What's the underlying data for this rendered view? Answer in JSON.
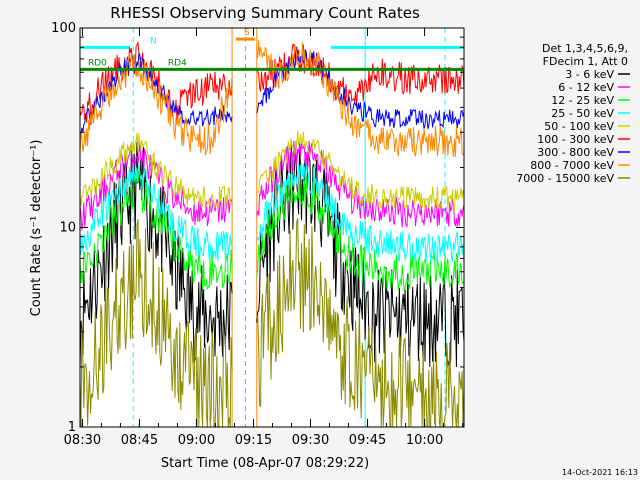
{
  "chart_data": {
    "type": "line",
    "title": "RHESSI Observing Summary Count Rates",
    "xlabel": "Start Time (08-Apr-07 08:29:22)",
    "ylabel": "Count Rate (s⁻¹ detector⁻¹)",
    "y_scale": "log",
    "ylim": [
      1,
      100
    ],
    "xlim_minutes": [
      0,
      101
    ],
    "x_tick_labels": [
      "08:30",
      "08:45",
      "09:00",
      "09:15",
      "09:30",
      "09:45",
      "10:00"
    ],
    "x_tick_minutes": [
      0.63,
      15.63,
      30.63,
      45.63,
      60.63,
      75.63,
      90.63
    ],
    "y_tick_labels": [
      "1",
      "10",
      "100"
    ],
    "y_tick_values": [
      1,
      10,
      100
    ],
    "legend_placement": "right",
    "legend_header": [
      "Det 1,3,4,5,6,9,",
      "FDecim 1, Att 0"
    ],
    "timestamp": "14-Oct-2021 16:13",
    "data_gap_minutes": [
      40,
      46.5
    ],
    "series": [
      {
        "name": "3 - 6 keV",
        "color": "#000000",
        "x": [
          0,
          5,
          10,
          15,
          20,
          25,
          30,
          35,
          40,
          46.5,
          52,
          57,
          62,
          67,
          72,
          77,
          82,
          88,
          95,
          101
        ],
        "values": [
          3.5,
          6,
          11,
          16,
          11,
          6,
          3.8,
          3.5,
          3.6,
          4.5,
          12,
          17,
          15,
          8,
          5,
          3.7,
          3.6,
          3.5,
          3.5,
          3.5
        ]
      },
      {
        "name": "6 - 12 keV",
        "color": "#ff00ff",
        "x": [
          0,
          5,
          10,
          15,
          20,
          25,
          30,
          35,
          40,
          46.5,
          52,
          57,
          62,
          67,
          72,
          77,
          82,
          88,
          95,
          101
        ],
        "values": [
          11,
          14,
          19,
          24,
          18,
          14,
          12,
          12,
          12.5,
          13,
          19,
          24,
          22,
          17,
          13.5,
          12.5,
          12,
          12,
          12,
          12
        ]
      },
      {
        "name": "12 - 25 keV",
        "color": "#00ff00",
        "x": [
          0,
          5,
          10,
          15,
          20,
          25,
          30,
          35,
          40,
          46.5,
          52,
          57,
          62,
          67,
          72,
          77,
          82,
          88,
          95,
          101
        ],
        "values": [
          6,
          8,
          12,
          16,
          11,
          8,
          6.3,
          6,
          6.2,
          7,
          12,
          16,
          14,
          9,
          7,
          6.2,
          6,
          6,
          6,
          6
        ]
      },
      {
        "name": "25 - 50 keV",
        "color": "#00ffff",
        "x": [
          0,
          5,
          10,
          15,
          20,
          25,
          30,
          35,
          40,
          46.5,
          52,
          57,
          62,
          67,
          72,
          77,
          82,
          88,
          95,
          101
        ],
        "values": [
          8,
          11,
          15,
          19,
          14,
          10,
          8.5,
          8,
          8.2,
          9,
          14,
          19,
          17,
          12,
          9.5,
          8.5,
          8.2,
          8,
          8,
          8
        ]
      },
      {
        "name": "50 - 100 keV",
        "color": "#cccc00",
        "x": [
          0,
          5,
          10,
          15,
          20,
          25,
          30,
          35,
          40,
          46.5,
          52,
          57,
          62,
          67,
          72,
          77,
          82,
          88,
          95,
          101
        ],
        "values": [
          14,
          17,
          22,
          27,
          20,
          16,
          14,
          14,
          14.5,
          15,
          21,
          27,
          25,
          19,
          15.5,
          14.5,
          14,
          14,
          14,
          14
        ]
      },
      {
        "name": "100 - 300 keV",
        "color": "#ff0000",
        "x": [
          0,
          5,
          10,
          15,
          20,
          25,
          30,
          35,
          40,
          46.5,
          52,
          57,
          62,
          67,
          72,
          77,
          82,
          88,
          95,
          101
        ],
        "values": [
          35,
          48,
          62,
          72,
          55,
          40,
          48,
          50,
          52,
          55,
          60,
          72,
          68,
          52,
          42,
          60,
          57,
          55,
          55,
          55
        ]
      },
      {
        "name": "300 - 800 keV",
        "color": "#0000ff",
        "x": [
          0,
          5,
          10,
          15,
          20,
          25,
          30,
          35,
          40,
          46.5,
          52,
          57,
          62,
          67,
          72,
          77,
          82,
          88,
          95,
          101
        ],
        "values": [
          30,
          42,
          58,
          70,
          52,
          38,
          35,
          36,
          38,
          40,
          55,
          72,
          68,
          50,
          40,
          36,
          35,
          35,
          35,
          35
        ]
      },
      {
        "name": "800 - 7000 keV",
        "color": "#ff8800",
        "x": [
          0,
          5,
          10,
          15,
          20,
          25,
          30,
          35,
          40,
          46.5,
          52,
          57,
          62,
          67,
          72,
          77,
          82,
          88,
          95,
          101
        ],
        "values": [
          25,
          38,
          55,
          68,
          48,
          33,
          27,
          28,
          50,
          80,
          55,
          75,
          68,
          45,
          33,
          28,
          27,
          27,
          27,
          27
        ]
      },
      {
        "name": "7000 - 15000 keV",
        "color": "#8b8b00",
        "x": [
          0,
          5,
          10,
          15,
          20,
          25,
          30,
          35,
          40,
          46.5,
          52,
          57,
          62,
          67,
          72,
          77,
          82,
          88,
          95,
          101
        ],
        "values": [
          1.5,
          2.5,
          4,
          6,
          4,
          2.5,
          1.7,
          1.5,
          1.6,
          2,
          4,
          6,
          5,
          3,
          2,
          1.6,
          1.5,
          1.5,
          1.5,
          1.5
        ]
      }
    ],
    "flag_bars": [
      {
        "label": "N",
        "color": "#00ffff",
        "level": 80,
        "ranges": [
          [
            0,
            13
          ],
          [
            66,
            101
          ]
        ]
      },
      {
        "label": "RD0",
        "color": "#008800",
        "level": 62,
        "ranges": [
          [
            0,
            21
          ]
        ]
      },
      {
        "label": "RD4",
        "color": "#008800",
        "level": 62,
        "ranges": [
          [
            21,
            101
          ]
        ]
      },
      {
        "label": "S",
        "color": "#ff8800",
        "level": 88,
        "ranges": [
          [
            41,
            46
          ]
        ]
      }
    ],
    "vertical_markers": [
      {
        "color": "#00ffff",
        "style": "dashed",
        "x_minutes": [
          14,
          96
        ]
      },
      {
        "color": "#00ffff",
        "style": "solid",
        "x_minutes": [
          0,
          75
        ]
      },
      {
        "color": "#ff8800",
        "style": "dashed",
        "x_minutes": [
          43.5
        ]
      },
      {
        "color": "#ff8800",
        "style": "solid",
        "x_minutes": [
          40,
          46.5
        ]
      }
    ]
  }
}
